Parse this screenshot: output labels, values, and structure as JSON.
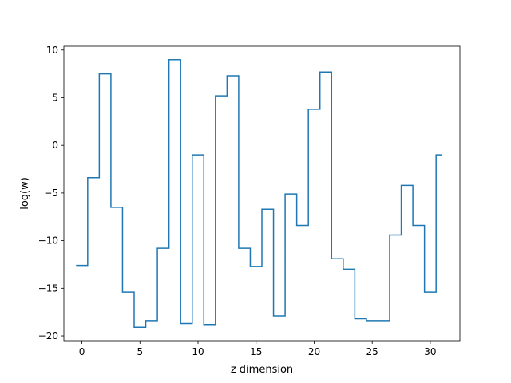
{
  "chart_data": {
    "type": "line",
    "drawstyle": "steps-mid",
    "title": "",
    "xlabel": "z dimension",
    "ylabel": "log(w)",
    "xlim": [
      -1.55,
      32.55
    ],
    "ylim": [
      -20.5,
      10.4
    ],
    "xticks": [
      0,
      5,
      10,
      15,
      20,
      25,
      30
    ],
    "yticks": [
      -20,
      -15,
      -10,
      -5,
      0,
      5,
      10
    ],
    "grid": false,
    "line_color": "#1f77b4",
    "series": [
      {
        "x": [
          0,
          1,
          2,
          3,
          4,
          5,
          6,
          7,
          8,
          9,
          10,
          11,
          12,
          13,
          14,
          15,
          16,
          17,
          18,
          19,
          20,
          21,
          22,
          23,
          24,
          25,
          26,
          27,
          28,
          29,
          30,
          31
        ],
        "values": [
          -12.6,
          -3.4,
          7.5,
          -6.5,
          -15.4,
          -19.1,
          -18.4,
          -10.8,
          9.0,
          -18.7,
          -1.0,
          -18.8,
          5.2,
          7.3,
          -10.8,
          -12.7,
          -6.7,
          -17.9,
          -5.1,
          -8.4,
          3.8,
          7.7,
          -11.9,
          -13.0,
          -18.2,
          -18.4,
          -18.4,
          -9.4,
          -4.2,
          -8.4,
          -15.4,
          -1.0
        ]
      }
    ]
  }
}
